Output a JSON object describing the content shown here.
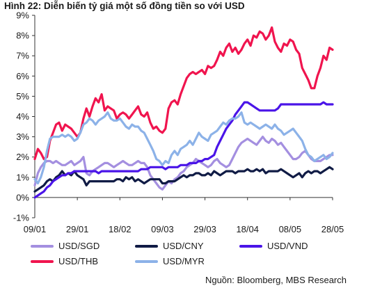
{
  "figure": {
    "title": "Hình 22: Diễn biến tỷ giá một số đồng tiền so với USD",
    "source": "Nguồn: Bloomberg, MBS Research"
  },
  "chart_data": {
    "type": "line",
    "title": "Hình 22: Diễn biến tỷ giá một số đồng tiền so với USD",
    "xlabel": "",
    "ylabel": "",
    "ylim": [
      -1,
      9
    ],
    "y_ticks": [
      "-1%",
      "0%",
      "1%",
      "2%",
      "3%",
      "4%",
      "5%",
      "6%",
      "7%",
      "8%",
      "9%"
    ],
    "x_ticks": [
      "09/01",
      "29/01",
      "18/02",
      "09/03",
      "29/03",
      "18/04",
      "08/05",
      "28/05"
    ],
    "x_tick_index": [
      0,
      14,
      28,
      42,
      56,
      70,
      84,
      98
    ],
    "grid": false,
    "legend_position": "bottom",
    "series": [
      {
        "name": "USD/SGD",
        "color": "#a48fe0",
        "values": [
          0.6,
          1.2,
          1.5,
          1.7,
          1.8,
          1.8,
          1.7,
          1.8,
          1.7,
          1.6,
          1.6,
          1.7,
          1.8,
          1.6,
          1.7,
          1.8,
          2.0,
          1.2,
          1.1,
          1.3,
          1.4,
          1.5,
          1.6,
          1.7,
          1.7,
          1.6,
          1.5,
          1.6,
          1.7,
          1.8,
          1.7,
          1.6,
          1.6,
          1.7,
          1.8,
          1.7,
          1.7,
          1.5,
          1.1,
          0.9,
          0.7,
          0.5,
          0.4,
          0.6,
          0.8,
          0.7,
          0.9,
          1.0,
          1.2,
          1.3,
          1.5,
          1.6,
          1.7,
          1.9,
          1.8,
          1.7,
          1.6,
          1.5,
          1.6,
          1.8,
          1.9,
          1.7,
          1.6,
          1.5,
          1.6,
          1.9,
          2.2,
          2.5,
          2.7,
          2.8,
          2.9,
          2.8,
          2.7,
          2.6,
          2.8,
          3.0,
          2.8,
          2.7,
          2.9,
          2.8,
          2.6,
          2.7,
          2.5,
          2.3,
          2.1,
          1.9,
          1.9,
          2.0,
          2.2,
          2.3,
          2.1,
          1.9,
          1.8,
          1.8,
          1.8,
          1.9,
          2.0,
          2.1,
          2.1
        ]
      },
      {
        "name": "USD/CNY",
        "color": "#101b45",
        "values": [
          0.3,
          0.4,
          0.5,
          0.6,
          0.8,
          0.9,
          0.8,
          1.0,
          1.1,
          1.3,
          1.1,
          1.2,
          1.1,
          1.3,
          1.1,
          1.0,
          0.9,
          0.6,
          0.8,
          0.8,
          0.8,
          0.8,
          0.8,
          0.8,
          0.8,
          0.8,
          0.8,
          0.9,
          0.9,
          0.8,
          1.0,
          0.9,
          1.0,
          0.8,
          0.9,
          0.8,
          0.7,
          0.8,
          0.9,
          0.9,
          0.9,
          0.9,
          0.7,
          0.7,
          0.8,
          0.8,
          0.8,
          0.9,
          1.0,
          1.1,
          1.0,
          1.1,
          1.1,
          1.2,
          1.2,
          1.1,
          1.1,
          1.2,
          1.1,
          1.3,
          1.2,
          1.1,
          1.2,
          1.3,
          1.3,
          1.3,
          1.2,
          1.3,
          1.3,
          1.3,
          1.4,
          1.3,
          1.3,
          1.4,
          1.3,
          1.4,
          1.2,
          1.3,
          1.3,
          1.3,
          1.3,
          1.4,
          1.3,
          1.2,
          1.1,
          1.0,
          1.1,
          1.2,
          1.0,
          1.2,
          1.3,
          1.2,
          1.3,
          1.3,
          1.2,
          1.3,
          1.4,
          1.5,
          1.4
        ]
      },
      {
        "name": "USD/VND",
        "color": "#4a14e8",
        "values": [
          0.0,
          0.1,
          0.2,
          0.3,
          0.5,
          0.6,
          0.8,
          0.9,
          1.0,
          1.1,
          1.1,
          1.2,
          1.2,
          1.3,
          1.3,
          1.3,
          1.3,
          1.3,
          1.3,
          1.3,
          1.3,
          1.2,
          1.3,
          1.3,
          1.3,
          1.3,
          1.3,
          1.3,
          1.3,
          1.3,
          1.3,
          1.3,
          1.3,
          1.3,
          1.3,
          1.4,
          1.4,
          1.4,
          1.5,
          1.5,
          1.5,
          1.5,
          1.5,
          1.4,
          1.5,
          1.5,
          1.5,
          1.5,
          1.6,
          1.6,
          1.6,
          1.7,
          1.7,
          1.7,
          1.8,
          1.8,
          1.9,
          1.9,
          2.0,
          2.1,
          2.5,
          2.8,
          3.1,
          3.4,
          3.6,
          3.8,
          4.1,
          4.3,
          4.5,
          4.7,
          4.7,
          4.6,
          4.5,
          4.4,
          4.3,
          4.3,
          4.3,
          4.3,
          4.3,
          4.3,
          4.4,
          4.6,
          4.6,
          4.6,
          4.6,
          4.6,
          4.6,
          4.6,
          4.6,
          4.6,
          4.6,
          4.6,
          4.6,
          4.6,
          4.6,
          4.7,
          4.6,
          4.6,
          4.6
        ]
      },
      {
        "name": "USD/THB",
        "color": "#f0144e",
        "values": [
          1.9,
          2.4,
          2.2,
          1.9,
          2.0,
          2.8,
          3.2,
          3.6,
          3.7,
          3.3,
          3.6,
          3.5,
          3.4,
          3.2,
          3.0,
          3.2,
          3.9,
          4.4,
          4.0,
          4.5,
          4.9,
          4.7,
          5.1,
          4.3,
          4.5,
          4.4,
          4.3,
          3.9,
          4.1,
          4.2,
          4.1,
          3.9,
          4.1,
          4.3,
          4.5,
          4.1,
          4.0,
          4.2,
          3.7,
          3.4,
          3.5,
          3.3,
          3.2,
          3.4,
          4.4,
          4.7,
          4.8,
          4.6,
          5.1,
          5.5,
          5.9,
          6.1,
          6.2,
          6.1,
          6.2,
          6.3,
          6.1,
          6.5,
          6.4,
          6.5,
          6.8,
          7.2,
          7.0,
          7.4,
          7.6,
          7.2,
          7.4,
          7.1,
          7.3,
          7.6,
          7.8,
          7.5,
          8.0,
          7.9,
          8.2,
          8.1,
          7.8,
          8.0,
          8.4,
          7.7,
          7.4,
          7.2,
          7.6,
          7.5,
          7.8,
          7.7,
          7.3,
          7.1,
          6.4,
          6.1,
          5.8,
          5.4,
          5.4,
          6.0,
          6.4,
          7.0,
          6.8,
          7.4,
          7.3
        ]
      },
      {
        "name": "USD/MYR",
        "color": "#8cb2e8",
        "values": [
          0.9,
          0.7,
          1.0,
          1.5,
          2.3,
          2.9,
          3.0,
          3.0,
          3.0,
          3.1,
          3.0,
          3.1,
          3.0,
          2.8,
          2.9,
          3.2,
          3.6,
          3.7,
          3.9,
          3.8,
          3.6,
          3.8,
          3.9,
          4.0,
          4.2,
          3.9,
          3.8,
          3.8,
          3.9,
          3.7,
          3.5,
          3.4,
          3.6,
          3.5,
          3.5,
          3.3,
          3.2,
          2.9,
          2.6,
          2.3,
          1.9,
          1.8,
          1.6,
          1.8,
          1.7,
          2.1,
          2.3,
          2.1,
          2.4,
          2.5,
          2.6,
          2.8,
          2.6,
          2.9,
          3.2,
          3.0,
          2.9,
          2.8,
          3.1,
          3.2,
          3.3,
          3.5,
          3.7,
          3.6,
          3.8,
          3.9,
          3.9,
          4.0,
          4.2,
          3.7,
          3.6,
          3.7,
          3.6,
          3.5,
          3.4,
          3.5,
          3.6,
          3.5,
          3.4,
          3.6,
          3.4,
          3.3,
          3.1,
          3.2,
          3.3,
          3.4,
          3.2,
          3.0,
          2.8,
          2.4,
          2.1,
          2.0,
          1.8,
          1.9,
          2.0,
          2.1,
          1.9,
          2.0,
          2.2
        ]
      }
    ]
  }
}
